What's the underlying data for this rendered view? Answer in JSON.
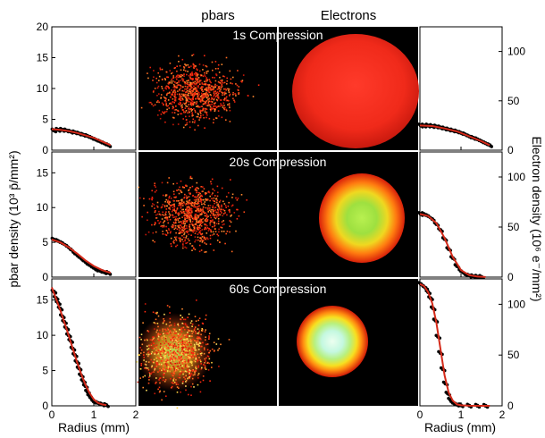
{
  "figure": {
    "column_headers": [
      "pbars",
      "Electrons"
    ],
    "row_labels": [
      "1s Compression",
      "20s Compression",
      "60s Compression"
    ],
    "left_ylabel": "pbar density (10³ p̄/mm²)",
    "right_ylabel": "Electron density (10⁶ e⁻/mm²)",
    "left_xlabel": "Radius (mm)",
    "right_xlabel": "Radius (mm)",
    "colors": {
      "data_points": "#000000",
      "fit_line": "#d42a1a",
      "image_background": "#000000"
    }
  },
  "chart_data": [
    {
      "type": "scatter",
      "panel": "pbar-1s",
      "ylim": [
        0,
        20
      ],
      "xlim": [
        0,
        2
      ],
      "yticks": [
        0,
        5,
        10,
        15,
        20
      ],
      "xticks": [
        0,
        1,
        2
      ],
      "show_x_tick_labels": false,
      "series": [
        {
          "values_x": [
            0.05,
            0.15,
            0.25,
            0.35,
            0.45,
            0.55,
            0.65,
            0.75,
            0.85,
            0.95,
            1.05,
            1.15,
            1.25,
            1.35
          ],
          "values_y": [
            3.2,
            3.3,
            3.3,
            3.2,
            3.0,
            2.9,
            2.7,
            2.5,
            2.3,
            2.0,
            1.7,
            1.4,
            1.1,
            0.8
          ]
        }
      ],
      "fit": {
        "x": [
          0,
          0.2,
          0.4,
          0.6,
          0.8,
          1.0,
          1.2,
          1.4
        ],
        "y": [
          3.4,
          3.3,
          3.1,
          2.8,
          2.4,
          2.0,
          1.4,
          0.8
        ]
      }
    },
    {
      "type": "scatter",
      "panel": "pbar-20s",
      "ylim": [
        0,
        18
      ],
      "xlim": [
        0,
        2
      ],
      "yticks": [
        0,
        5,
        10,
        15
      ],
      "xticks": [
        0,
        1,
        2
      ],
      "show_x_tick_labels": false,
      "series": [
        {
          "values_x": [
            0.05,
            0.15,
            0.25,
            0.35,
            0.45,
            0.55,
            0.65,
            0.75,
            0.85,
            0.95,
            1.05,
            1.15,
            1.25,
            1.35
          ],
          "values_y": [
            5.4,
            5.2,
            4.9,
            4.5,
            4.0,
            3.4,
            2.9,
            2.4,
            1.9,
            1.5,
            1.1,
            0.9,
            0.7,
            0.6
          ]
        }
      ],
      "fit": {
        "x": [
          0,
          0.2,
          0.4,
          0.6,
          0.8,
          1.0,
          1.2,
          1.4
        ],
        "y": [
          5.4,
          5.0,
          4.3,
          3.4,
          2.4,
          1.6,
          1.0,
          0.6
        ]
      }
    },
    {
      "type": "scatter",
      "panel": "pbar-60s",
      "ylim": [
        0,
        18
      ],
      "xlim": [
        0,
        2
      ],
      "yticks": [
        0,
        5,
        10,
        15
      ],
      "xticks": [
        0,
        1,
        2
      ],
      "show_x_tick_labels": true,
      "series": [
        {
          "values_x": [
            0.05,
            0.1,
            0.15,
            0.2,
            0.25,
            0.3,
            0.35,
            0.4,
            0.45,
            0.5,
            0.55,
            0.6,
            0.65,
            0.7,
            0.75,
            0.8,
            0.85,
            0.9,
            0.95,
            1.0,
            1.1,
            1.2,
            1.3
          ],
          "values_y": [
            16.2,
            15.3,
            14.6,
            13.8,
            12.7,
            11.9,
            11.0,
            10.0,
            9.2,
            8.1,
            7.2,
            6.2,
            5.3,
            4.3,
            3.5,
            2.8,
            2.0,
            1.4,
            1.0,
            0.6,
            0.4,
            0.2,
            0.1
          ]
        }
      ],
      "fit": {
        "x": [
          0,
          0.1,
          0.2,
          0.3,
          0.4,
          0.5,
          0.6,
          0.7,
          0.8,
          0.9,
          1.0,
          1.1,
          1.2,
          1.3
        ],
        "y": [
          16.8,
          15.2,
          13.6,
          11.8,
          10.0,
          8.1,
          6.2,
          4.5,
          3.0,
          1.8,
          0.9,
          0.4,
          0.2,
          0.1
        ]
      }
    },
    {
      "type": "scatter",
      "panel": "electron-1s",
      "ylim": [
        0,
        125
      ],
      "xlim": [
        0,
        2
      ],
      "yticks": [
        0,
        50,
        100
      ],
      "xticks": [
        0,
        1,
        2
      ],
      "show_x_tick_labels": false,
      "series": [
        {
          "values_x": [
            0.02,
            0.1,
            0.2,
            0.3,
            0.4,
            0.5,
            0.6,
            0.7,
            0.8,
            0.9,
            1.0,
            1.1,
            1.2,
            1.3,
            1.4,
            1.5,
            1.6,
            1.7
          ],
          "values_y": [
            25,
            25,
            25,
            24.5,
            24,
            23,
            22,
            21,
            20,
            19,
            17.5,
            16,
            14,
            12.5,
            11,
            9,
            7,
            5
          ]
        }
      ],
      "fit": {
        "x": [
          0,
          0.3,
          0.6,
          0.9,
          1.2,
          1.5,
          1.7
        ],
        "y": [
          25,
          24.5,
          22,
          19,
          14,
          9,
          5
        ]
      }
    },
    {
      "type": "scatter",
      "panel": "electron-20s",
      "ylim": [
        0,
        125
      ],
      "xlim": [
        0,
        2
      ],
      "yticks": [
        0,
        50,
        100
      ],
      "xticks": [
        0,
        1,
        2
      ],
      "show_x_tick_labels": false,
      "series": [
        {
          "values_x": [
            0.02,
            0.1,
            0.2,
            0.3,
            0.4,
            0.5,
            0.6,
            0.7,
            0.8,
            0.9,
            1.0,
            1.1,
            1.2,
            1.3,
            1.4,
            1.5
          ],
          "values_y": [
            63,
            63,
            61,
            58,
            53,
            47,
            38,
            28,
            19,
            11,
            6,
            3,
            1.5,
            0.8,
            0.4,
            0.2
          ]
        }
      ],
      "fit": {
        "x": [
          0,
          0.2,
          0.4,
          0.6,
          0.8,
          1.0,
          1.2,
          1.4,
          1.6
        ],
        "y": [
          63,
          61,
          54,
          39,
          20,
          7,
          2,
          0.5,
          0.1
        ]
      }
    },
    {
      "type": "scatter",
      "panel": "electron-60s",
      "ylim": [
        0,
        125
      ],
      "xlim": [
        0,
        2
      ],
      "yticks": [
        0,
        50,
        100
      ],
      "xticks": [
        0,
        1,
        2
      ],
      "show_x_tick_labels": true,
      "series": [
        {
          "values_x": [
            0.02,
            0.08,
            0.14,
            0.2,
            0.26,
            0.32,
            0.38,
            0.44,
            0.5,
            0.56,
            0.62,
            0.68,
            0.74,
            0.8,
            0.9,
            1.0,
            1.2,
            1.4,
            1.6
          ],
          "values_y": [
            120,
            118,
            116,
            112,
            106,
            96,
            84,
            68,
            52,
            36,
            22,
            12,
            6,
            3,
            1.2,
            0.5,
            0.2,
            0.1,
            0
          ]
        }
      ],
      "fit": {
        "x": [
          0,
          0.1,
          0.2,
          0.3,
          0.4,
          0.5,
          0.6,
          0.7,
          0.8,
          0.9,
          1.0,
          1.2,
          1.5,
          1.7
        ],
        "y": [
          120,
          118,
          112,
          101,
          82,
          56,
          30,
          13,
          5,
          1.5,
          0.5,
          0.1,
          0,
          0
        ]
      }
    }
  ]
}
